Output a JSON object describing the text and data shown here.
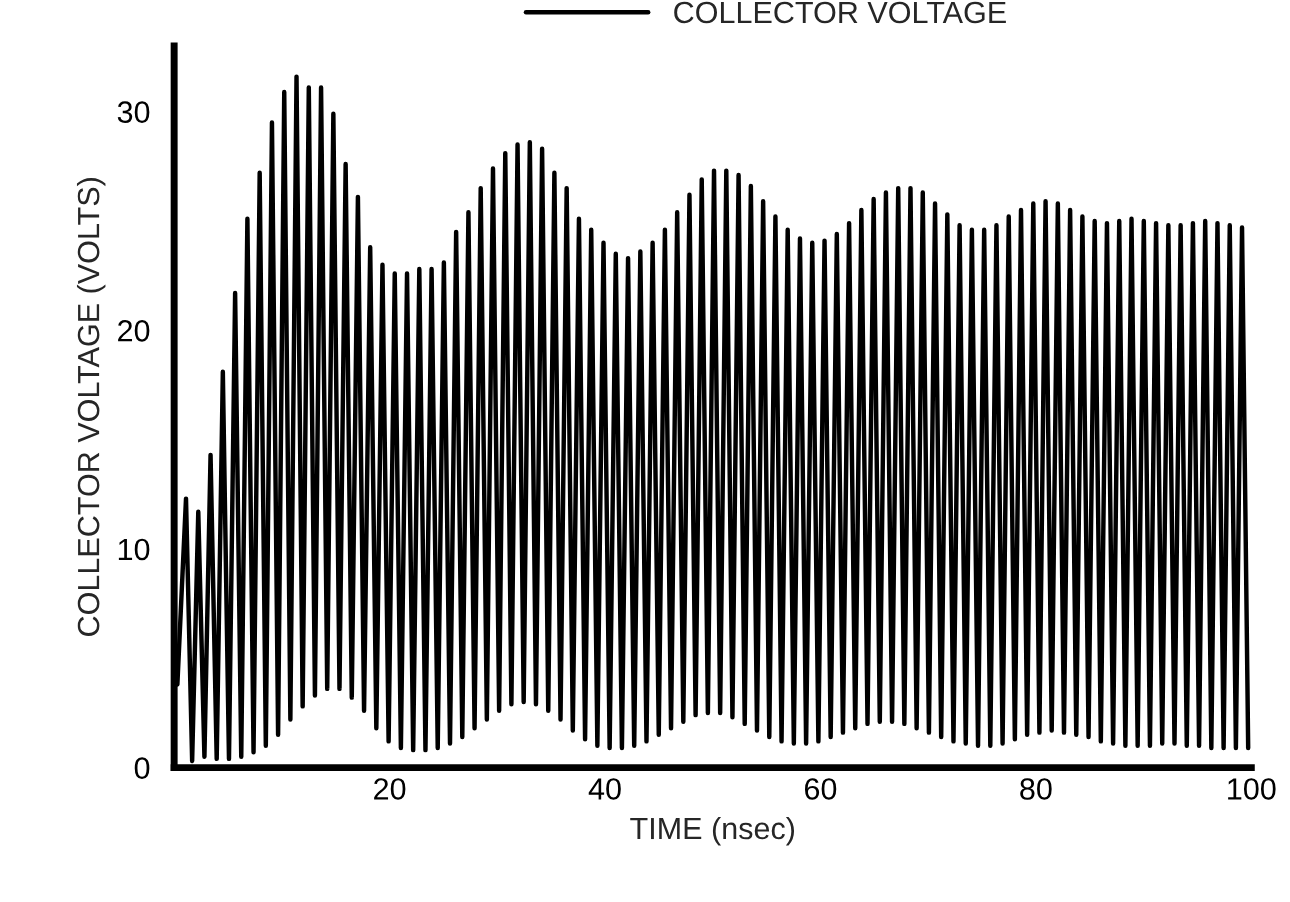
{
  "chart_data": {
    "type": "line",
    "xlabel": "TIME (nsec)",
    "ylabel": "COLLECTOR VOLTAGE (VOLTS)",
    "xlim": [
      0,
      100
    ],
    "ylim": [
      0,
      33
    ],
    "xticks": [
      20,
      40,
      60,
      80,
      100
    ],
    "yticks": [
      0,
      10,
      20,
      30
    ],
    "grid": false,
    "legend": "top",
    "marker": "none",
    "line_style": "solid",
    "series": [
      {
        "name": "COLLECTOR VOLTAGE",
        "color": "#000000",
        "x": [
          0.3,
          1.1,
          1.67,
          2.24,
          2.81,
          3.38,
          3.95,
          4.52,
          5.09,
          5.66,
          6.23,
          6.8,
          7.37,
          7.94,
          8.51,
          9.08,
          9.65,
          10.22,
          10.79,
          11.36,
          11.93,
          12.5,
          13.07,
          13.64,
          14.21,
          14.78,
          15.35,
          15.92,
          16.49,
          17.06,
          17.63,
          18.2,
          18.77,
          19.34,
          19.91,
          20.48,
          21.05,
          21.62,
          22.19,
          22.76,
          23.33,
          23.9,
          24.47,
          25.04,
          25.61,
          26.18,
          26.75,
          27.32,
          27.89,
          28.46,
          29.03,
          29.6,
          30.17,
          30.74,
          31.31,
          31.88,
          32.45,
          33.02,
          33.59,
          34.16,
          34.73,
          35.3,
          35.87,
          36.44,
          37.01,
          37.58,
          38.15,
          38.72,
          39.29,
          39.86,
          40.43,
          41.0,
          41.57,
          42.14,
          42.71,
          43.28,
          43.85,
          44.42,
          44.99,
          45.56,
          46.13,
          46.7,
          47.27,
          47.84,
          48.41,
          48.98,
          49.55,
          50.12,
          50.69,
          51.26,
          51.83,
          52.4,
          52.97,
          53.54,
          54.11,
          54.68,
          55.25,
          55.82,
          56.39,
          56.96,
          57.53,
          58.1,
          58.67,
          59.24,
          59.81,
          60.38,
          60.95,
          61.52,
          62.09,
          62.66,
          63.23,
          63.8,
          64.37,
          64.94,
          65.51,
          66.08,
          66.65,
          67.22,
          67.79,
          68.36,
          68.93,
          69.5,
          70.07,
          70.64,
          71.21,
          71.78,
          72.35,
          72.92,
          73.49,
          74.06,
          74.63,
          75.2,
          75.77,
          76.34,
          76.91,
          77.48,
          78.05,
          78.62,
          79.19,
          79.76,
          80.33,
          80.9,
          81.47,
          82.04,
          82.61,
          83.18,
          83.75,
          84.32,
          84.89,
          85.46,
          86.03,
          86.6,
          87.17,
          87.74,
          88.31,
          88.88,
          89.45,
          90.02,
          90.59,
          91.16,
          91.73,
          92.3,
          92.87,
          93.44,
          94.01,
          94.58,
          95.15,
          95.72,
          96.29,
          96.86,
          97.43,
          98.0,
          98.57,
          99.14,
          99.71
        ],
        "values": [
          3.8,
          12.3,
          0.3,
          11.7,
          0.5,
          14.3,
          0.4,
          18.1,
          0.4,
          21.7,
          0.5,
          25.1,
          0.7,
          27.2,
          1.0,
          29.5,
          1.5,
          30.9,
          2.2,
          31.6,
          2.8,
          31.1,
          3.3,
          31.1,
          3.6,
          29.9,
          3.6,
          27.6,
          3.2,
          26.1,
          2.6,
          23.8,
          1.8,
          23.0,
          1.2,
          22.6,
          0.9,
          22.6,
          0.8,
          22.8,
          0.8,
          22.8,
          0.9,
          23.1,
          1.1,
          24.5,
          1.4,
          25.4,
          1.8,
          26.5,
          2.2,
          27.4,
          2.6,
          28.1,
          2.9,
          28.5,
          3.0,
          28.6,
          2.9,
          28.3,
          2.6,
          27.2,
          2.2,
          26.5,
          1.7,
          25.1,
          1.3,
          24.6,
          1.0,
          24.0,
          0.9,
          23.5,
          0.9,
          23.3,
          1.0,
          23.6,
          1.2,
          24.0,
          1.5,
          24.6,
          1.8,
          25.4,
          2.1,
          26.2,
          2.4,
          26.9,
          2.5,
          27.3,
          2.5,
          27.3,
          2.3,
          27.1,
          2.0,
          26.6,
          1.7,
          25.9,
          1.4,
          25.2,
          1.2,
          24.6,
          1.1,
          24.2,
          1.1,
          24.0,
          1.2,
          24.1,
          1.4,
          24.4,
          1.6,
          24.9,
          1.8,
          25.5,
          2.0,
          26.0,
          2.1,
          26.3,
          2.1,
          26.5,
          2.0,
          26.5,
          1.8,
          26.3,
          1.6,
          25.8,
          1.4,
          25.3,
          1.2,
          24.8,
          1.1,
          24.6,
          1.0,
          24.6,
          1.0,
          24.8,
          1.1,
          25.2,
          1.3,
          25.5,
          1.5,
          25.8,
          1.6,
          25.9,
          1.7,
          25.8,
          1.6,
          25.5,
          1.5,
          25.2,
          1.4,
          25.0,
          1.2,
          24.9,
          1.1,
          25.0,
          1.0,
          25.1,
          1.0,
          25.0,
          1.0,
          24.9,
          1.1,
          24.8,
          1.1,
          24.8,
          1.0,
          24.9,
          1.0,
          25.0,
          0.9,
          24.9,
          0.9,
          24.8,
          0.9,
          24.7,
          0.9
        ]
      }
    ]
  }
}
